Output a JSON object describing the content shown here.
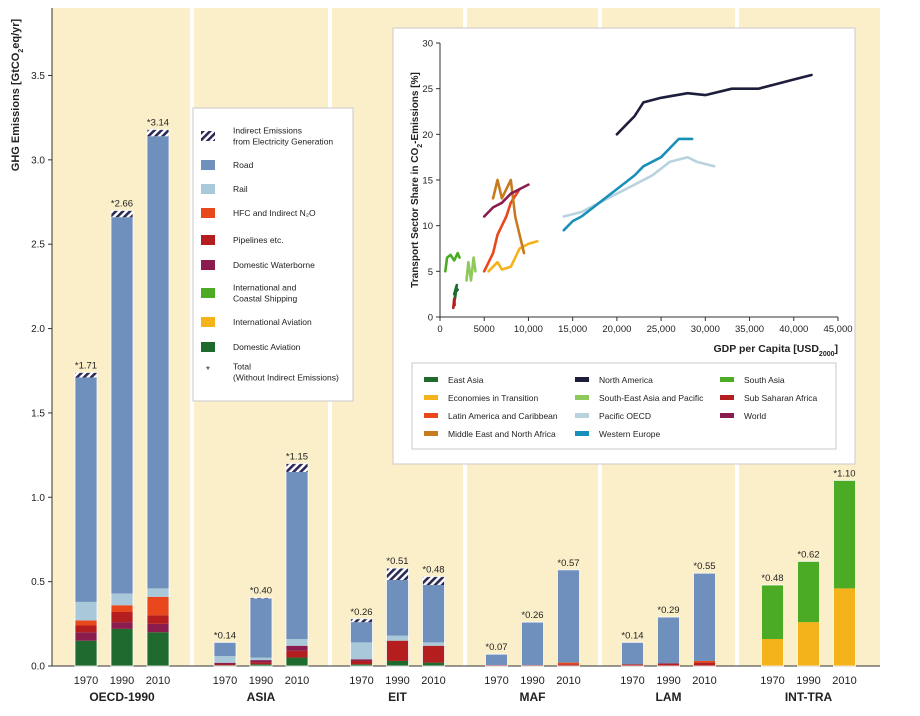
{
  "chart_data": [
    {
      "type": "bar",
      "stacked": true,
      "ylabel_parts": [
        "GHG Emissions [GtCO",
        "2",
        "eq/yr]"
      ],
      "ylim": [
        0,
        3.9
      ],
      "yticks": [
        "0.0",
        "0.5",
        "1.0",
        "1.5",
        "2.0",
        "2.5",
        "3.0",
        "3.5"
      ],
      "regions": [
        "OECD-1990",
        "ASIA",
        "EIT",
        "MAF",
        "LAM",
        "INT-TRA"
      ],
      "years": [
        "1970",
        "1990",
        "2010"
      ],
      "legend": [
        {
          "key": "indirect",
          "label_lines": [
            "Indirect Emissions",
            "from Electricity Generation"
          ]
        },
        {
          "key": "road",
          "label_lines": [
            "Road"
          ],
          "color": "#6f8fbd"
        },
        {
          "key": "rail",
          "label_lines": [
            "Rail"
          ],
          "color": "#a9c8da"
        },
        {
          "key": "hfc",
          "label_lines": [
            "HFC and Indirect N₂O"
          ],
          "color": "#e8481c"
        },
        {
          "key": "pipelines",
          "label_lines": [
            "Pipelines etc."
          ],
          "color": "#b41e1e"
        },
        {
          "key": "waterborne",
          "label_lines": [
            "Domestic Waterborne"
          ],
          "color": "#8a1c4e"
        },
        {
          "key": "shipping",
          "label_lines": [
            "International and",
            "Coastal Shipping"
          ],
          "color": "#4cab25"
        },
        {
          "key": "aviation_int",
          "label_lines": [
            "International Aviation"
          ],
          "color": "#f4b21b"
        },
        {
          "key": "aviation_dom",
          "label_lines": [
            "Domestic Aviation"
          ],
          "color": "#1f6b2f"
        },
        {
          "key": "total",
          "label_lines": [
            "Total",
            "(Without Indirect Emissions)"
          ]
        }
      ],
      "bars": [
        {
          "region": "OECD-1990",
          "year": "1970",
          "total": "*1.71",
          "segments": [
            [
              "aviation_dom",
              0.15
            ],
            [
              "waterborne",
              0.05
            ],
            [
              "pipelines",
              0.04
            ],
            [
              "hfc",
              0.03
            ],
            [
              "rail",
              0.11
            ],
            [
              "road",
              1.33
            ],
            [
              "indirect",
              0.03
            ]
          ]
        },
        {
          "region": "OECD-1990",
          "year": "1990",
          "total": "*2.66",
          "segments": [
            [
              "aviation_dom",
              0.22
            ],
            [
              "waterborne",
              0.04
            ],
            [
              "pipelines",
              0.06
            ],
            [
              "hfc",
              0.04
            ],
            [
              "rail",
              0.07
            ],
            [
              "road",
              2.23
            ],
            [
              "indirect",
              0.04
            ]
          ]
        },
        {
          "region": "OECD-1990",
          "year": "2010",
          "total": "*3.14",
          "segments": [
            [
              "aviation_dom",
              0.2
            ],
            [
              "waterborne",
              0.05
            ],
            [
              "pipelines",
              0.05
            ],
            [
              "hfc",
              0.11
            ],
            [
              "rail",
              0.05
            ],
            [
              "road",
              2.68
            ],
            [
              "indirect",
              0.04
            ]
          ]
        },
        {
          "region": "ASIA",
          "year": "1970",
          "total": "*0.14",
          "segments": [
            [
              "aviation_dom",
              0.004
            ],
            [
              "pipelines",
              0.005
            ],
            [
              "waterborne",
              0.01
            ],
            [
              "rail",
              0.04
            ],
            [
              "road",
              0.081
            ]
          ]
        },
        {
          "region": "ASIA",
          "year": "1990",
          "total": "*0.40",
          "segments": [
            [
              "aviation_dom",
              0.01
            ],
            [
              "pipelines",
              0.01
            ],
            [
              "waterborne",
              0.015
            ],
            [
              "rail",
              0.015
            ],
            [
              "road",
              0.35
            ],
            [
              "indirect",
              0.005
            ]
          ]
        },
        {
          "region": "ASIA",
          "year": "2010",
          "total": "*1.15",
          "segments": [
            [
              "aviation_dom",
              0.05
            ],
            [
              "pipelines",
              0.04
            ],
            [
              "waterborne",
              0.03
            ],
            [
              "rail",
              0.04
            ],
            [
              "road",
              0.99
            ],
            [
              "indirect",
              0.05
            ]
          ]
        },
        {
          "region": "EIT",
          "year": "1970",
          "total": "*0.26",
          "segments": [
            [
              "aviation_dom",
              0.01
            ],
            [
              "pipelines",
              0.02
            ],
            [
              "waterborne",
              0.01
            ],
            [
              "rail",
              0.1
            ],
            [
              "road",
              0.12
            ],
            [
              "indirect",
              0.02
            ]
          ]
        },
        {
          "region": "EIT",
          "year": "1990",
          "total": "*0.51",
          "segments": [
            [
              "aviation_dom",
              0.03
            ],
            [
              "pipelines",
              0.12
            ],
            [
              "rail",
              0.03
            ],
            [
              "road",
              0.33
            ],
            [
              "indirect",
              0.07
            ]
          ]
        },
        {
          "region": "EIT",
          "year": "2010",
          "total": "*0.48",
          "segments": [
            [
              "aviation_dom",
              0.02
            ],
            [
              "pipelines",
              0.1
            ],
            [
              "rail",
              0.02
            ],
            [
              "road",
              0.34
            ],
            [
              "indirect",
              0.05
            ]
          ]
        },
        {
          "region": "MAF",
          "year": "1970",
          "total": "*0.07",
          "segments": [
            [
              "pipelines",
              0.005
            ],
            [
              "road",
              0.065
            ]
          ]
        },
        {
          "region": "MAF",
          "year": "1990",
          "total": "*0.26",
          "segments": [
            [
              "pipelines",
              0.005
            ],
            [
              "road",
              0.255
            ]
          ]
        },
        {
          "region": "MAF",
          "year": "2010",
          "total": "*0.57",
          "segments": [
            [
              "pipelines",
              0.01
            ],
            [
              "hfc",
              0.01
            ],
            [
              "road",
              0.55
            ]
          ]
        },
        {
          "region": "LAM",
          "year": "1970",
          "total": "*0.14",
          "segments": [
            [
              "pipelines",
              0.01
            ],
            [
              "road",
              0.13
            ]
          ]
        },
        {
          "region": "LAM",
          "year": "1990",
          "total": "*0.29",
          "segments": [
            [
              "pipelines",
              0.015
            ],
            [
              "road",
              0.275
            ]
          ]
        },
        {
          "region": "LAM",
          "year": "2010",
          "total": "*0.55",
          "segments": [
            [
              "pipelines",
              0.02
            ],
            [
              "hfc",
              0.01
            ],
            [
              "road",
              0.52
            ]
          ]
        },
        {
          "region": "INT-TRA",
          "year": "1970",
          "total": "*0.48",
          "segments": [
            [
              "aviation_int",
              0.16
            ],
            [
              "shipping",
              0.32
            ]
          ]
        },
        {
          "region": "INT-TRA",
          "year": "1990",
          "total": "*0.62",
          "segments": [
            [
              "aviation_int",
              0.26
            ],
            [
              "shipping",
              0.36
            ]
          ]
        },
        {
          "region": "INT-TRA",
          "year": "2010",
          "total": "*1.10",
          "segments": [
            [
              "aviation_int",
              0.46
            ],
            [
              "shipping",
              0.64
            ]
          ]
        }
      ]
    },
    {
      "type": "line",
      "xlabel_parts": [
        "GDP per Capita [USD",
        "2000",
        "]"
      ],
      "ylabel_parts": [
        "Transport Sector Share in CO",
        "2",
        "-Emissions [%]"
      ],
      "xlim": [
        0,
        45000
      ],
      "ylim": [
        0,
        30
      ],
      "xticks": [
        "0",
        "5000",
        "10,000",
        "15,000",
        "20,000",
        "25,000",
        "30,000",
        "35,000",
        "40,000",
        "45,000"
      ],
      "yticks": [
        "0",
        "5",
        "10",
        "15",
        "20",
        "25",
        "30"
      ],
      "series": [
        {
          "name": "East Asia",
          "color": "#1f6b2f",
          "points": [
            [
              1600,
              1.5
            ],
            [
              1800,
              3
            ],
            [
              1700,
              2
            ],
            [
              1900,
              3.5
            ],
            [
              1600,
              2.5
            ],
            [
              2000,
              3
            ]
          ]
        },
        {
          "name": "Economies in Transition",
          "color": "#f4b21b",
          "points": [
            [
              5500,
              5
            ],
            [
              6500,
              6
            ],
            [
              7000,
              5.2
            ],
            [
              8000,
              5.5
            ],
            [
              9000,
              7.5
            ],
            [
              10000,
              8
            ],
            [
              11000,
              8.3
            ]
          ]
        },
        {
          "name": "Latin America and Caribbean",
          "color": "#e8481c",
          "points": [
            [
              5000,
              5
            ],
            [
              6000,
              7
            ],
            [
              6500,
              9
            ],
            [
              7500,
              11
            ],
            [
              8000,
              12.5
            ],
            [
              9000,
              14
            ]
          ]
        },
        {
          "name": "Middle East and North Africa",
          "color": "#c87a1e",
          "points": [
            [
              6000,
              13
            ],
            [
              6500,
              15
            ],
            [
              7000,
              13
            ],
            [
              8000,
              15
            ],
            [
              8500,
              11
            ],
            [
              9000,
              9
            ],
            [
              9500,
              7
            ]
          ]
        },
        {
          "name": "North America",
          "color": "#1d1d3c",
          "points": [
            [
              20000,
              20
            ],
            [
              21000,
              21
            ],
            [
              22000,
              22
            ],
            [
              23000,
              23.5
            ],
            [
              25000,
              24
            ],
            [
              28000,
              24.5
            ],
            [
              30000,
              24.3
            ],
            [
              33000,
              25
            ],
            [
              36000,
              25
            ],
            [
              38000,
              25.5
            ],
            [
              40000,
              26
            ],
            [
              42000,
              26.5
            ]
          ]
        },
        {
          "name": "South-East Asia and Pacific",
          "color": "#8ec95a",
          "points": [
            [
              3000,
              4
            ],
            [
              3200,
              6
            ],
            [
              3500,
              4
            ],
            [
              3800,
              6.5
            ],
            [
              4000,
              5
            ]
          ]
        },
        {
          "name": "Pacific OECD",
          "color": "#b8d3df",
          "points": [
            [
              14000,
              11
            ],
            [
              16000,
              11.5
            ],
            [
              18000,
              12.5
            ],
            [
              20000,
              13.5
            ],
            [
              22000,
              14.5
            ],
            [
              24000,
              15.5
            ],
            [
              26000,
              17
            ],
            [
              28000,
              17.5
            ],
            [
              29000,
              17
            ],
            [
              31000,
              16.5
            ]
          ]
        },
        {
          "name": "Western Europe",
          "color": "#1a8fb8",
          "points": [
            [
              14000,
              9.5
            ],
            [
              15000,
              10.5
            ],
            [
              16000,
              11
            ],
            [
              18000,
              12.5
            ],
            [
              20000,
              14
            ],
            [
              22000,
              15.5
            ],
            [
              23000,
              16.5
            ],
            [
              25000,
              17.5
            ],
            [
              26000,
              18.5
            ],
            [
              27000,
              19.5
            ],
            [
              28500,
              19.5
            ]
          ]
        },
        {
          "name": "South Asia",
          "color": "#4cab25",
          "points": [
            [
              600,
              5
            ],
            [
              800,
              6.5
            ],
            [
              1200,
              6.8
            ],
            [
              1600,
              6.2
            ],
            [
              2000,
              7
            ],
            [
              2200,
              6.5
            ]
          ]
        },
        {
          "name": "Sub Saharan Africa",
          "color": "#b41e1e",
          "points": [
            [
              1500,
              1
            ],
            [
              1600,
              2
            ],
            [
              1650,
              1.3
            ]
          ]
        },
        {
          "name": "World",
          "color": "#8a1c4e",
          "points": [
            [
              5000,
              11
            ],
            [
              6000,
              12
            ],
            [
              7000,
              12.5
            ],
            [
              8000,
              13.5
            ],
            [
              9000,
              14
            ],
            [
              10000,
              14.5
            ]
          ]
        }
      ]
    }
  ]
}
